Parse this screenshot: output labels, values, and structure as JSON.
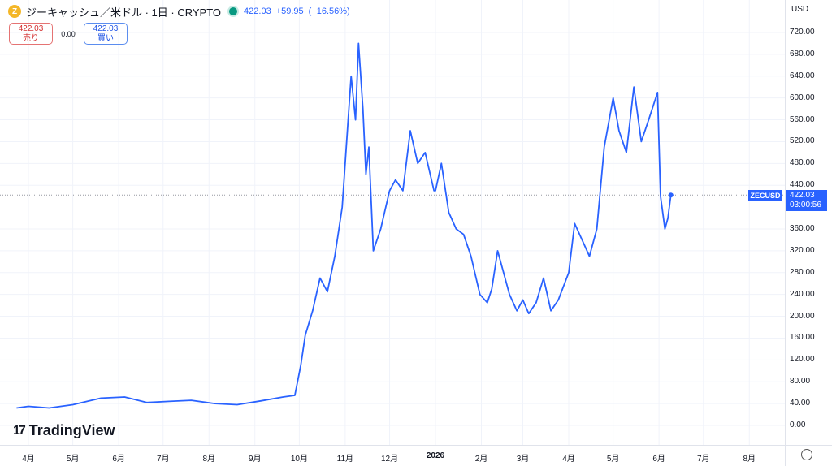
{
  "header": {
    "coin_icon": "Z",
    "symbol_title": "ジーキャッシュ／米ドル · 1日 · CRYPTO",
    "last_price": "422.03",
    "change": "+59.95",
    "change_pct": "(+16.56%)",
    "colors": {
      "up": "#2962ff",
      "live_dot": "#089981",
      "coin": "#f4b728"
    }
  },
  "trade": {
    "sell_price": "422.03",
    "sell_label": "売り",
    "spread": "0.00",
    "buy_price": "422.03",
    "buy_label": "買い"
  },
  "price_axis": {
    "currency": "USD",
    "ticks": [
      "720.00",
      "680.00",
      "640.00",
      "600.00",
      "560.00",
      "520.00",
      "480.00",
      "440.00",
      "360.00",
      "320.00",
      "280.00",
      "240.00",
      "200.00",
      "160.00",
      "120.00",
      "80.00",
      "40.00",
      "0.00"
    ]
  },
  "time_axis": {
    "ticks": [
      "4月",
      "5月",
      "6月",
      "7月",
      "8月",
      "9月",
      "10月",
      "11月",
      "12月",
      "2026",
      "2月",
      "3月",
      "4月",
      "5月",
      "6月",
      "7月",
      "8月"
    ]
  },
  "current": {
    "symbol_tag": "ZECUSD",
    "price": "422.03",
    "countdown": "03:00:56"
  },
  "branding": {
    "logo_mark": "17",
    "logo_text": "TradingView"
  },
  "chart_data": {
    "type": "line",
    "series": [
      {
        "color": "#2962ff",
        "x": [
          "2025-03-24",
          "2025-04-01",
          "2025-04-15",
          "2025-05-01",
          "2025-05-20",
          "2025-06-05",
          "2025-06-20",
          "2025-07-05",
          "2025-07-20",
          "2025-08-05",
          "2025-08-20",
          "2025-09-05",
          "2025-09-20",
          "2025-09-28",
          "2025-10-02",
          "2025-10-05",
          "2025-10-10",
          "2025-10-15",
          "2025-10-20",
          "2025-10-25",
          "2025-10-30",
          "2025-11-03",
          "2025-11-05",
          "2025-11-08",
          "2025-11-10",
          "2025-11-13",
          "2025-11-15",
          "2025-11-17",
          "2025-11-20",
          "2025-11-25",
          "2025-12-01",
          "2025-12-05",
          "2025-12-10",
          "2025-12-15",
          "2025-12-20",
          "2025-12-25",
          "2025-12-31",
          "2026-01-01",
          "2026-01-05",
          "2026-01-10",
          "2026-01-15",
          "2026-01-20",
          "2026-01-25",
          "2026-01-31",
          "2026-02-05",
          "2026-02-08",
          "2026-02-12",
          "2026-02-20",
          "2026-02-25",
          "2026-03-01",
          "2026-03-05",
          "2026-03-10",
          "2026-03-15",
          "2026-03-20",
          "2026-03-25",
          "2026-04-01",
          "2026-04-05",
          "2026-04-10",
          "2026-04-15",
          "2026-04-20",
          "2026-04-25",
          "2026-05-01",
          "2026-05-05",
          "2026-05-10",
          "2026-05-15",
          "2026-05-20",
          "2026-05-25",
          "2026-05-31",
          "2026-06-02",
          "2026-06-05",
          "2026-06-07",
          "2026-06-09"
        ],
        "values": [
          32,
          35,
          32,
          38,
          50,
          52,
          42,
          44,
          46,
          40,
          38,
          45,
          52,
          55,
          110,
          165,
          210,
          270,
          245,
          310,
          400,
          560,
          640,
          560,
          700,
          580,
          460,
          510,
          320,
          360,
          430,
          450,
          430,
          540,
          480,
          500,
          430,
          430,
          480,
          390,
          360,
          350,
          310,
          240,
          225,
          250,
          320,
          240,
          210,
          230,
          205,
          225,
          270,
          210,
          230,
          280,
          370,
          340,
          310,
          360,
          510,
          600,
          540,
          500,
          620,
          520,
          560,
          610,
          420,
          360,
          380,
          422
        ]
      }
    ],
    "ylim": [
      0,
      740
    ],
    "xlim": [
      "2025-03-15",
      "2026-08-25"
    ],
    "last_value": 422.03,
    "grid": true
  }
}
